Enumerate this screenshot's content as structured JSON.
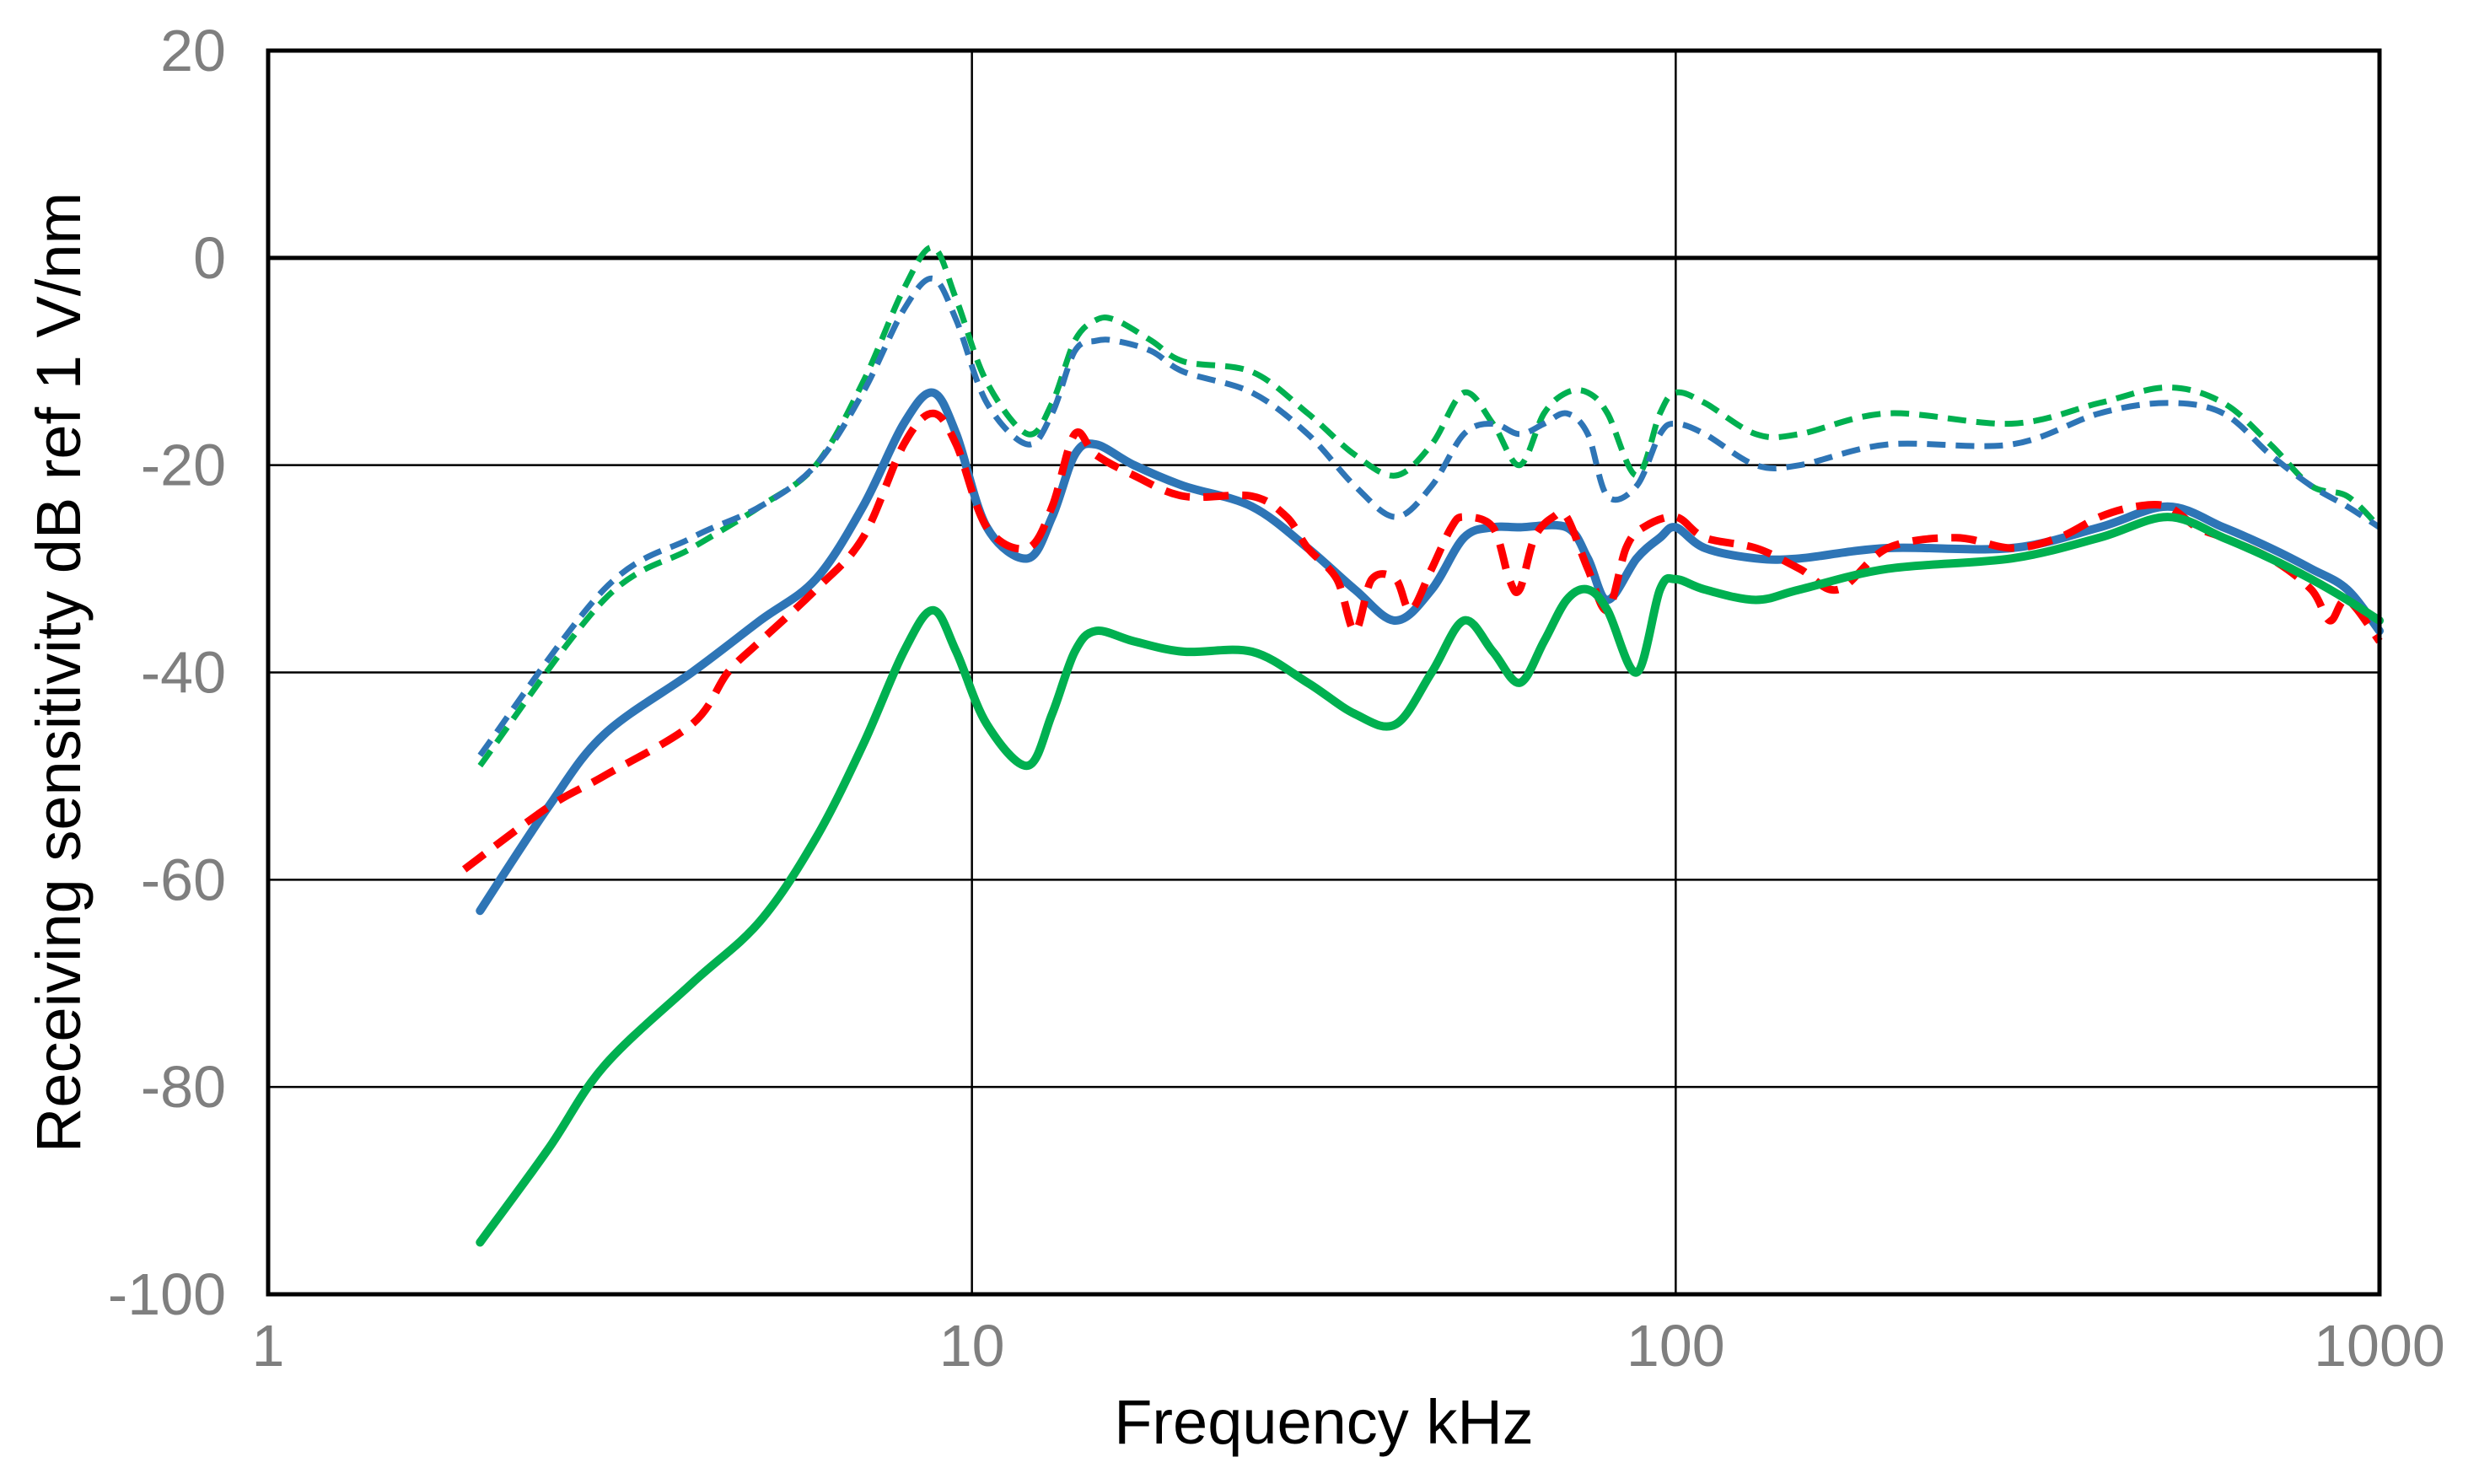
{
  "chart_data": {
    "type": "line",
    "title": "",
    "xlabel": "Frequency  kHz",
    "ylabel": "Receiving sensitivity  dB ref 1 V/nm",
    "xscale": "log",
    "xlim": [
      1,
      1000
    ],
    "ylim": [
      -100,
      20
    ],
    "xticks": [
      1,
      10,
      100,
      1000
    ],
    "xtick_labels": [
      "1",
      "10",
      "100",
      "1000"
    ],
    "yticks": [
      20,
      0,
      -20,
      -40,
      -60,
      -80,
      -100
    ],
    "ytick_labels": [
      "20",
      "0",
      "-20",
      "-40",
      "-60",
      "-80",
      "-100"
    ],
    "grid": true,
    "legend": "none",
    "series": [
      {
        "name": "green-dashed",
        "color": "#00b050",
        "style": "dashed",
        "points": [
          [
            2,
            -49
          ],
          [
            3,
            -33
          ],
          [
            4,
            -28
          ],
          [
            5,
            -24
          ],
          [
            6,
            -20
          ],
          [
            7,
            -12
          ],
          [
            8,
            -3
          ],
          [
            8.8,
            1
          ],
          [
            9.5,
            -4
          ],
          [
            10.5,
            -12
          ],
          [
            12,
            -17
          ],
          [
            13,
            -14
          ],
          [
            14,
            -8
          ],
          [
            15,
            -6
          ],
          [
            16,
            -6
          ],
          [
            18,
            -8
          ],
          [
            20,
            -10
          ],
          [
            25,
            -11
          ],
          [
            30,
            -15
          ],
          [
            35,
            -19
          ],
          [
            40,
            -21
          ],
          [
            45,
            -18
          ],
          [
            50,
            -13
          ],
          [
            55,
            -16
          ],
          [
            60,
            -20
          ],
          [
            65,
            -15
          ],
          [
            70,
            -13
          ],
          [
            75,
            -13
          ],
          [
            80,
            -15
          ],
          [
            88,
            -21
          ],
          [
            95,
            -15
          ],
          [
            100,
            -13
          ],
          [
            110,
            -14
          ],
          [
            130,
            -17
          ],
          [
            150,
            -17
          ],
          [
            200,
            -15
          ],
          [
            300,
            -16
          ],
          [
            400,
            -14
          ],
          [
            500,
            -12.5
          ],
          [
            600,
            -14
          ],
          [
            700,
            -18
          ],
          [
            800,
            -22
          ],
          [
            900,
            -23
          ],
          [
            1000,
            -26
          ]
        ]
      },
      {
        "name": "blue-dashed",
        "color": "#2e75b6",
        "style": "dashed",
        "points": [
          [
            2,
            -48
          ],
          [
            3,
            -32
          ],
          [
            4,
            -27
          ],
          [
            5,
            -24
          ],
          [
            6,
            -20
          ],
          [
            7,
            -13
          ],
          [
            8,
            -5
          ],
          [
            8.8,
            -2
          ],
          [
            9.5,
            -6
          ],
          [
            10.5,
            -14
          ],
          [
            12,
            -18
          ],
          [
            13,
            -15
          ],
          [
            14,
            -9
          ],
          [
            15,
            -8
          ],
          [
            16,
            -8
          ],
          [
            18,
            -9
          ],
          [
            20,
            -11
          ],
          [
            25,
            -13
          ],
          [
            30,
            -17
          ],
          [
            35,
            -22
          ],
          [
            40,
            -25
          ],
          [
            45,
            -22
          ],
          [
            50,
            -17
          ],
          [
            55,
            -16
          ],
          [
            60,
            -17
          ],
          [
            65,
            -16
          ],
          [
            70,
            -15
          ],
          [
            75,
            -17
          ],
          [
            80,
            -23
          ],
          [
            88,
            -22
          ],
          [
            95,
            -17
          ],
          [
            100,
            -16
          ],
          [
            110,
            -17
          ],
          [
            130,
            -20
          ],
          [
            150,
            -20
          ],
          [
            200,
            -18
          ],
          [
            300,
            -18
          ],
          [
            400,
            -15
          ],
          [
            500,
            -14
          ],
          [
            600,
            -15
          ],
          [
            700,
            -19
          ],
          [
            800,
            -22
          ],
          [
            900,
            -24
          ],
          [
            1000,
            -26
          ]
        ]
      },
      {
        "name": "blue-solid",
        "color": "#2e75b6",
        "style": "solid",
        "points": [
          [
            2,
            -63
          ],
          [
            2.5,
            -53
          ],
          [
            3,
            -46
          ],
          [
            4,
            -40
          ],
          [
            5,
            -35
          ],
          [
            6,
            -31
          ],
          [
            7,
            -24
          ],
          [
            8,
            -16
          ],
          [
            8.8,
            -13
          ],
          [
            9.5,
            -17
          ],
          [
            10.5,
            -26
          ],
          [
            12,
            -29
          ],
          [
            13,
            -25
          ],
          [
            14,
            -19
          ],
          [
            15,
            -18
          ],
          [
            17,
            -20
          ],
          [
            20,
            -22
          ],
          [
            25,
            -24
          ],
          [
            30,
            -28
          ],
          [
            35,
            -32
          ],
          [
            40,
            -35
          ],
          [
            45,
            -32
          ],
          [
            50,
            -27
          ],
          [
            55,
            -26
          ],
          [
            60,
            -26
          ],
          [
            70,
            -26
          ],
          [
            75,
            -29
          ],
          [
            80,
            -33
          ],
          [
            88,
            -29
          ],
          [
            95,
            -27
          ],
          [
            100,
            -26
          ],
          [
            110,
            -28
          ],
          [
            130,
            -29
          ],
          [
            150,
            -29
          ],
          [
            200,
            -28
          ],
          [
            300,
            -28
          ],
          [
            400,
            -26
          ],
          [
            500,
            -24
          ],
          [
            600,
            -26
          ],
          [
            700,
            -28
          ],
          [
            800,
            -30
          ],
          [
            900,
            -32
          ],
          [
            1000,
            -36
          ]
        ]
      },
      {
        "name": "red-dashed",
        "color": "#ff0000",
        "style": "dashed",
        "points": [
          [
            1.9,
            -59
          ],
          [
            2.5,
            -53
          ],
          [
            3,
            -50
          ],
          [
            4,
            -45
          ],
          [
            4.5,
            -40
          ],
          [
            5,
            -37
          ],
          [
            6,
            -32
          ],
          [
            7,
            -27
          ],
          [
            8,
            -18
          ],
          [
            8.8,
            -15
          ],
          [
            9.5,
            -18
          ],
          [
            10.5,
            -26
          ],
          [
            12,
            -28
          ],
          [
            13,
            -24
          ],
          [
            14,
            -17
          ],
          [
            15,
            -19
          ],
          [
            17,
            -21
          ],
          [
            20,
            -23
          ],
          [
            25,
            -23
          ],
          [
            28,
            -25
          ],
          [
            30,
            -28
          ],
          [
            33,
            -31
          ],
          [
            35,
            -36
          ],
          [
            37,
            -31
          ],
          [
            40,
            -31
          ],
          [
            42,
            -34
          ],
          [
            45,
            -30
          ],
          [
            48,
            -26
          ],
          [
            50,
            -25
          ],
          [
            55,
            -26
          ],
          [
            58,
            -31
          ],
          [
            60,
            -32
          ],
          [
            63,
            -27
          ],
          [
            67,
            -25
          ],
          [
            70,
            -25
          ],
          [
            75,
            -30
          ],
          [
            80,
            -34
          ],
          [
            85,
            -28
          ],
          [
            90,
            -26
          ],
          [
            100,
            -25
          ],
          [
            110,
            -27
          ],
          [
            130,
            -28
          ],
          [
            150,
            -30
          ],
          [
            170,
            -32
          ],
          [
            200,
            -28
          ],
          [
            250,
            -27
          ],
          [
            300,
            -28
          ],
          [
            350,
            -27
          ],
          [
            400,
            -25
          ],
          [
            450,
            -24
          ],
          [
            500,
            -24
          ],
          [
            550,
            -26
          ],
          [
            600,
            -27
          ],
          [
            700,
            -29
          ],
          [
            800,
            -32
          ],
          [
            850,
            -35
          ],
          [
            900,
            -33
          ],
          [
            1000,
            -37
          ]
        ]
      },
      {
        "name": "green-solid",
        "color": "#00b050",
        "style": "solid",
        "points": [
          [
            2,
            -95
          ],
          [
            2.5,
            -86
          ],
          [
            3,
            -78
          ],
          [
            4,
            -70
          ],
          [
            5,
            -64
          ],
          [
            6,
            -56
          ],
          [
            7,
            -47
          ],
          [
            8,
            -38
          ],
          [
            8.8,
            -34
          ],
          [
            9.5,
            -38
          ],
          [
            10.5,
            -45
          ],
          [
            12,
            -49
          ],
          [
            13,
            -44
          ],
          [
            14,
            -38
          ],
          [
            15,
            -36
          ],
          [
            17,
            -37
          ],
          [
            20,
            -38
          ],
          [
            25,
            -38
          ],
          [
            30,
            -41
          ],
          [
            35,
            -44
          ],
          [
            40,
            -45
          ],
          [
            45,
            -40
          ],
          [
            50,
            -35
          ],
          [
            55,
            -38
          ],
          [
            60,
            -41
          ],
          [
            65,
            -37
          ],
          [
            70,
            -33
          ],
          [
            75,
            -32
          ],
          [
            80,
            -34
          ],
          [
            88,
            -40
          ],
          [
            95,
            -32
          ],
          [
            100,
            -31
          ],
          [
            110,
            -32
          ],
          [
            130,
            -33
          ],
          [
            150,
            -32
          ],
          [
            200,
            -30
          ],
          [
            300,
            -29
          ],
          [
            400,
            -27
          ],
          [
            500,
            -25
          ],
          [
            600,
            -27
          ],
          [
            700,
            -29
          ],
          [
            800,
            -31
          ],
          [
            900,
            -33
          ],
          [
            1000,
            -35
          ]
        ]
      }
    ]
  }
}
